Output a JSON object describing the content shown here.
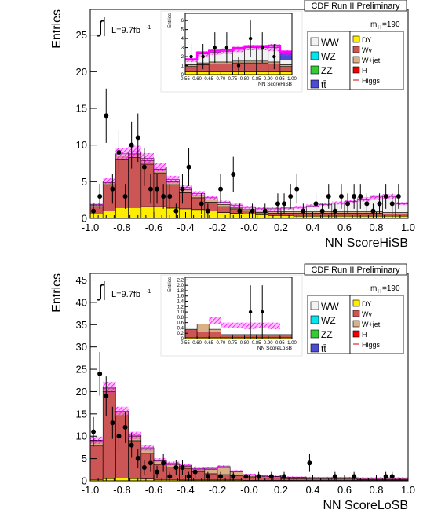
{
  "colors": {
    "WW": "#f2f2f2",
    "WZ": "#00e5ee",
    "ZZ": "#33cc33",
    "ttbar": "#4b4bd6",
    "DY": "#ffee00",
    "Wgamma": "#cc5555",
    "Wjet": "#d9b088",
    "H": "#ee0000",
    "Higgs": "#cc0000",
    "band": "#ff00ff",
    "data": "#000000",
    "frame": "#000000"
  },
  "chart_data": [
    {
      "type": "histogram",
      "title": "CDF Run II Preliminary",
      "mass_label_main": "m",
      "mass_label_sub": "H",
      "mass_label_value": "=190",
      "lumi_text": "L=9.7fb",
      "lumi_exp": "-1",
      "integral_symbol": "∫",
      "xlabel": "NN ScoreHiSB",
      "ylabel": "Entries",
      "xlim": [
        -1.0,
        1.0
      ],
      "ylim": [
        0,
        28.5
      ],
      "xticks": [
        "-1.0",
        "-0.8",
        "-0.6",
        "-0.4",
        "-0.2",
        "-0.0",
        "0.2",
        "0.4",
        "0.6",
        "0.8",
        "1.0"
      ],
      "yticks": [
        "0",
        "5",
        "10",
        "15",
        "20",
        "25"
      ],
      "legend": [
        {
          "key": "WW",
          "label": "WW"
        },
        {
          "key": "WZ",
          "label": "WZ"
        },
        {
          "key": "ZZ",
          "label": "ZZ"
        },
        {
          "key": "ttbar",
          "label": "tt̄"
        },
        {
          "key": "DY",
          "label": "DY"
        },
        {
          "key": "Wgamma",
          "label": "Wγ"
        },
        {
          "key": "Wjet",
          "label": "W+jet"
        },
        {
          "key": "H",
          "label": "H"
        },
        {
          "key": "Higgs",
          "label": "Higgs"
        }
      ],
      "bins": 25,
      "stack": {
        "DY": [
          0.6,
          1.0,
          1.5,
          1.5,
          1.6,
          1.6,
          1.4,
          1.3,
          1.2,
          1.0,
          0.8,
          0.7,
          0.6,
          0.5,
          0.4,
          0.4,
          0.3,
          0.3,
          0.3,
          0.3,
          0.3,
          0.3,
          0.3,
          0.3,
          0.3
        ],
        "Wgamma": [
          1.0,
          3.6,
          6.5,
          6.8,
          5.8,
          4.6,
          3.2,
          2.2,
          1.6,
          1.2,
          0.8,
          0.6,
          0.4,
          0.3,
          0.3,
          0.3,
          0.4,
          0.4,
          0.4,
          0.4,
          0.4,
          0.4,
          0.4,
          0.3,
          0.3
        ],
        "Wjet": [
          0.2,
          0.3,
          0.5,
          0.5,
          0.5,
          0.5,
          0.4,
          0.4,
          0.3,
          0.3,
          0.3,
          0.2,
          0.2,
          0.2,
          0.2,
          0.2,
          0.2,
          0.2,
          0.2,
          0.2,
          0.2,
          0.2,
          0.2,
          0.2,
          0.2
        ],
        "WW": [
          0.1,
          0.2,
          0.3,
          0.3,
          0.3,
          0.3,
          0.3,
          0.3,
          0.3,
          0.3,
          0.3,
          0.3,
          0.3,
          0.3,
          0.4,
          0.5,
          0.6,
          0.8,
          1.0,
          1.2,
          1.4,
          1.7,
          2.0,
          2.2,
          1.2
        ]
      },
      "band_halfwidth": [
        0.2,
        0.4,
        0.8,
        0.8,
        0.7,
        0.6,
        0.5,
        0.4,
        0.3,
        0.3,
        0.2,
        0.2,
        0.2,
        0.2,
        0.2,
        0.2,
        0.2,
        0.2,
        0.2,
        0.2,
        0.2,
        0.3,
        0.3,
        0.3,
        0.2
      ],
      "data_points": [
        {
          "x": -0.98,
          "y": 1,
          "err": 1.0
        },
        {
          "x": -0.94,
          "y": 3,
          "err": 1.7
        },
        {
          "x": -0.9,
          "y": 14,
          "err": 3.7
        },
        {
          "x": -0.86,
          "y": 4,
          "err": 2.0
        },
        {
          "x": -0.82,
          "y": 9,
          "err": 3.0
        },
        {
          "x": -0.78,
          "y": 3,
          "err": 1.7
        },
        {
          "x": -0.74,
          "y": 10,
          "err": 3.2
        },
        {
          "x": -0.7,
          "y": 11,
          "err": 3.3
        },
        {
          "x": -0.66,
          "y": 7,
          "err": 2.6
        },
        {
          "x": -0.62,
          "y": 4,
          "err": 2.0
        },
        {
          "x": -0.58,
          "y": 4,
          "err": 2.0
        },
        {
          "x": -0.54,
          "y": 3,
          "err": 1.7
        },
        {
          "x": -0.5,
          "y": 3,
          "err": 1.7
        },
        {
          "x": -0.46,
          "y": 1,
          "err": 1.0
        },
        {
          "x": -0.42,
          "y": 4,
          "err": 2.0
        },
        {
          "x": -0.38,
          "y": 7,
          "err": 2.6
        },
        {
          "x": -0.3,
          "y": 2,
          "err": 1.4
        },
        {
          "x": -0.26,
          "y": 1,
          "err": 1.0
        },
        {
          "x": -0.18,
          "y": 4,
          "err": 2.0
        },
        {
          "x": -0.1,
          "y": 6,
          "err": 2.4
        },
        {
          "x": -0.06,
          "y": 1,
          "err": 1.0
        },
        {
          "x": 0.02,
          "y": 1,
          "err": 1.0
        },
        {
          "x": 0.1,
          "y": 1,
          "err": 1.0
        },
        {
          "x": 0.18,
          "y": 2,
          "err": 1.4
        },
        {
          "x": 0.22,
          "y": 2,
          "err": 1.4
        },
        {
          "x": 0.26,
          "y": 3,
          "err": 1.7
        },
        {
          "x": 0.3,
          "y": 4,
          "err": 2.0
        },
        {
          "x": 0.34,
          "y": 1,
          "err": 1.0
        },
        {
          "x": 0.42,
          "y": 2,
          "err": 1.4
        },
        {
          "x": 0.46,
          "y": 1,
          "err": 1.0
        },
        {
          "x": 0.5,
          "y": 3,
          "err": 1.7
        },
        {
          "x": 0.54,
          "y": 1,
          "err": 1.0
        },
        {
          "x": 0.58,
          "y": 3,
          "err": 1.7
        },
        {
          "x": 0.62,
          "y": 2,
          "err": 1.4
        },
        {
          "x": 0.66,
          "y": 3,
          "err": 1.7
        },
        {
          "x": 0.7,
          "y": 3,
          "err": 1.7
        },
        {
          "x": 0.74,
          "y": 2,
          "err": 1.4
        },
        {
          "x": 0.78,
          "y": 1,
          "err": 1.0
        },
        {
          "x": 0.82,
          "y": 2,
          "err": 1.4
        },
        {
          "x": 0.86,
          "y": 3,
          "err": 1.7
        },
        {
          "x": 0.9,
          "y": 2,
          "err": 1.4
        },
        {
          "x": 0.94,
          "y": 3,
          "err": 1.7
        }
      ],
      "inset": {
        "xlabel": "NN ScoreHiSB",
        "ylabel": "Entries",
        "xlim": [
          0.55,
          1.0
        ],
        "ylim": [
          0,
          6.8
        ],
        "xticks": [
          "0.55",
          "0.60",
          "0.65",
          "0.70",
          "0.75",
          "0.80",
          "0.85",
          "0.90",
          "0.95",
          "1.00"
        ],
        "yticks": [
          "0",
          "1",
          "2",
          "3",
          "4",
          "5",
          "6"
        ],
        "stack": {
          "DY": [
            0.3,
            0.3,
            0.3,
            0.3,
            0.3,
            0.3,
            0.3,
            0.3,
            0.3
          ],
          "Wgamma": [
            0.6,
            0.8,
            0.9,
            0.9,
            1.0,
            1.0,
            1.0,
            0.9,
            0.6
          ],
          "Wjet": [
            0.2,
            0.2,
            0.2,
            0.2,
            0.2,
            0.2,
            0.2,
            0.2,
            0.2
          ],
          "WW": [
            0.5,
            1.0,
            1.1,
            1.2,
            1.3,
            1.5,
            1.5,
            1.6,
            0.5
          ]
        },
        "blue_last": 0.8,
        "band_halfwidth": [
          0.2,
          0.3,
          0.3,
          0.3,
          0.3,
          0.3,
          0.3,
          0.4,
          0.3
        ],
        "data_points": [
          {
            "x": 0.575,
            "y": 2,
            "err": 1.4
          },
          {
            "x": 0.625,
            "y": 2,
            "err": 1.4
          },
          {
            "x": 0.675,
            "y": 3,
            "err": 1.7
          },
          {
            "x": 0.725,
            "y": 3,
            "err": 1.7
          },
          {
            "x": 0.775,
            "y": 1,
            "err": 1.0
          },
          {
            "x": 0.825,
            "y": 4,
            "err": 2.0
          },
          {
            "x": 0.875,
            "y": 3,
            "err": 1.7
          },
          {
            "x": 0.925,
            "y": 2,
            "err": 1.4
          }
        ]
      }
    },
    {
      "type": "histogram",
      "title": "CDF Run II Preliminary",
      "mass_label_main": "m",
      "mass_label_sub": "H",
      "mass_label_value": "=190",
      "lumi_text": "L=9.7fb",
      "lumi_exp": "-1",
      "integral_symbol": "∫",
      "xlabel": "NN ScoreLoSB",
      "ylabel": "Entries",
      "xlim": [
        -1.0,
        1.0
      ],
      "ylim": [
        0,
        46.5
      ],
      "xticks": [
        "-1.0",
        "-0.8",
        "-0.6",
        "-0.4",
        "-0.2",
        "-0.0",
        "0.2",
        "0.4",
        "0.6",
        "0.8",
        "1.0"
      ],
      "yticks": [
        "0",
        "5",
        "10",
        "15",
        "20",
        "25",
        "30",
        "35",
        "40",
        "45"
      ],
      "legend": [
        {
          "key": "WW",
          "label": "WW"
        },
        {
          "key": "WZ",
          "label": "WZ"
        },
        {
          "key": "ZZ",
          "label": "ZZ"
        },
        {
          "key": "ttbar",
          "label": "tt̄"
        },
        {
          "key": "DY",
          "label": "DY"
        },
        {
          "key": "Wgamma",
          "label": "Wγ"
        },
        {
          "key": "Wjet",
          "label": "W+jet"
        },
        {
          "key": "H",
          "label": "H"
        },
        {
          "key": "Higgs",
          "label": "Higgs"
        }
      ],
      "bins": 25,
      "stack": {
        "DY": [
          0.3,
          0.5,
          0.6,
          0.5,
          0.4,
          0.3,
          0.3,
          0.2,
          0.2,
          0.2,
          0.2,
          0.2,
          0.1,
          0.1,
          0.1,
          0.1,
          0.1,
          0.1,
          0.1,
          0.1,
          0.1,
          0.1,
          0.1,
          0.1,
          0.1
        ],
        "Wgamma": [
          7.5,
          19.5,
          14.0,
          8.5,
          5.8,
          3.4,
          2.8,
          2.6,
          1.8,
          1.4,
          1.2,
          1.0,
          0.8,
          0.6,
          0.5,
          0.4,
          0.4,
          0.3,
          0.3,
          0.3,
          0.3,
          0.2,
          0.2,
          0.2,
          0.2
        ],
        "Wjet": [
          1.2,
          0.8,
          0.8,
          1.0,
          1.0,
          0.8,
          0.6,
          0.5,
          0.5,
          1.0,
          1.6,
          0.8,
          0.4,
          0.3,
          0.3,
          0.2,
          0.2,
          0.2,
          0.2,
          0.2,
          0.2,
          0.2,
          0.2,
          0.2,
          0.2
        ],
        "WW": [
          0.1,
          0.2,
          0.2,
          0.2,
          0.2,
          0.2,
          0.2,
          0.2,
          0.2,
          0.2,
          0.2,
          0.2,
          0.1,
          0.1,
          0.1,
          0.1,
          0.1,
          0.1,
          0.1,
          0.1,
          0.1,
          0.1,
          0.1,
          0.1,
          0.1
        ]
      },
      "band_halfwidth": [
        0.8,
        1.2,
        1.0,
        0.8,
        0.6,
        0.4,
        0.4,
        0.3,
        0.3,
        0.3,
        0.3,
        0.2,
        0.2,
        0.2,
        0.2,
        0.2,
        0.2,
        0.2,
        0.2,
        0.2,
        0.2,
        0.2,
        0.2,
        0.2,
        0.2
      ],
      "data_points": [
        {
          "x": -0.98,
          "y": 11,
          "err": 3.3
        },
        {
          "x": -0.94,
          "y": 24,
          "err": 4.9
        },
        {
          "x": -0.9,
          "y": 19,
          "err": 4.4
        },
        {
          "x": -0.86,
          "y": 13,
          "err": 3.6
        },
        {
          "x": -0.82,
          "y": 10,
          "err": 3.2
        },
        {
          "x": -0.78,
          "y": 12,
          "err": 3.5
        },
        {
          "x": -0.74,
          "y": 8,
          "err": 2.8
        },
        {
          "x": -0.7,
          "y": 5,
          "err": 2.2
        },
        {
          "x": -0.66,
          "y": 3,
          "err": 1.7
        },
        {
          "x": -0.62,
          "y": 4,
          "err": 2.0
        },
        {
          "x": -0.58,
          "y": 2,
          "err": 1.4
        },
        {
          "x": -0.54,
          "y": 4,
          "err": 2.0
        },
        {
          "x": -0.5,
          "y": 1,
          "err": 1.0
        },
        {
          "x": -0.46,
          "y": 3,
          "err": 1.7
        },
        {
          "x": -0.42,
          "y": 3,
          "err": 1.7
        },
        {
          "x": -0.38,
          "y": 1,
          "err": 1.0
        },
        {
          "x": -0.34,
          "y": 2,
          "err": 1.4
        },
        {
          "x": -0.26,
          "y": 1,
          "err": 1.0
        },
        {
          "x": -0.18,
          "y": 1,
          "err": 1.0
        },
        {
          "x": -0.1,
          "y": 1,
          "err": 1.0
        },
        {
          "x": -0.02,
          "y": 1,
          "err": 1.0
        },
        {
          "x": 0.06,
          "y": 1,
          "err": 1.0
        },
        {
          "x": 0.14,
          "y": 1,
          "err": 1.0
        },
        {
          "x": 0.22,
          "y": 1,
          "err": 1.0
        },
        {
          "x": 0.38,
          "y": 4,
          "err": 2.0
        },
        {
          "x": 0.54,
          "y": 1,
          "err": 1.0
        },
        {
          "x": 0.66,
          "y": 1,
          "err": 1.0
        },
        {
          "x": 0.86,
          "y": 1,
          "err": 1.0
        },
        {
          "x": 0.9,
          "y": 1,
          "err": 1.0
        }
      ],
      "inset": {
        "xlabel": "NN ScoreLoSB",
        "ylabel": "Entries",
        "xlim": [
          0.55,
          1.0
        ],
        "ylim": [
          0,
          2.3
        ],
        "xticks": [
          "0.55",
          "0.60",
          "0.65",
          "0.70",
          "0.75",
          "0.80",
          "0.85",
          "0.90",
          "0.95",
          "1.00"
        ],
        "yticks": [
          "0",
          "0.2",
          "0.4",
          "0.6",
          "0.8",
          "1.0",
          "1.2",
          "1.4",
          "1.6",
          "1.8",
          "2.0",
          "2.2"
        ],
        "stack": {
          "DY": [
            0.05,
            0.05,
            0.05,
            0.05,
            0.05,
            0.05,
            0.05,
            0.05,
            0.05
          ],
          "Wgamma": [
            0.3,
            0.2,
            0.2,
            0.1,
            0.1,
            0.1,
            0.1,
            0.1,
            0.1
          ],
          "Wjet": [
            0.0,
            0.3,
            0.1,
            0.0,
            0.0,
            0.0,
            0.0,
            0.0,
            0.0
          ],
          "WW": [
            0.0,
            0.0,
            0.0,
            0.0,
            0.0,
            0.0,
            0.0,
            0.0,
            0.0
          ]
        },
        "blue_last": 0.0,
        "band_top": [
          0.0,
          0.0,
          0.8,
          0.6,
          0.6,
          0.6,
          0.6,
          0.6,
          0.0
        ],
        "band_bottom": [
          0.0,
          0.0,
          0.55,
          0.4,
          0.4,
          0.35,
          0.4,
          0.35,
          0.0
        ],
        "data_points": [
          {
            "x": 0.825,
            "y": 1,
            "err": 1.0
          },
          {
            "x": 0.875,
            "y": 1,
            "err": 1.0
          }
        ]
      }
    }
  ]
}
